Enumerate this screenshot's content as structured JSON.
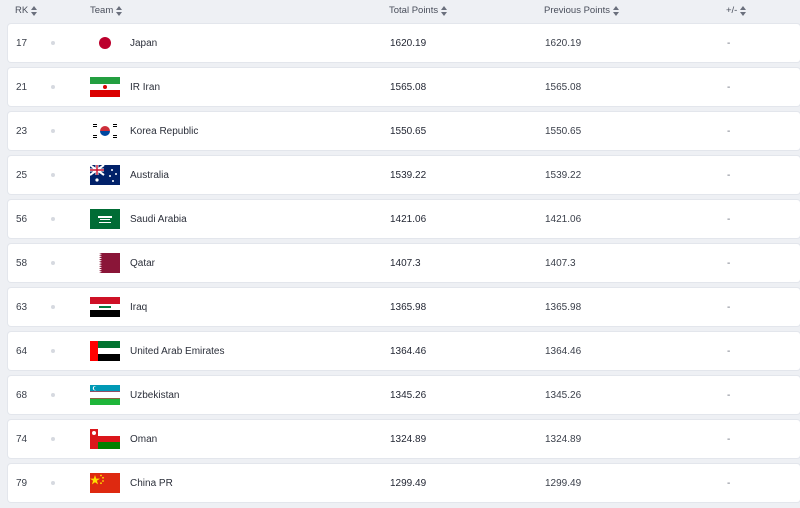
{
  "columns": {
    "rank": "RK",
    "team": "Team",
    "total_points": "Total Points",
    "previous_points": "Previous Points",
    "change": "+/-"
  },
  "rows": [
    {
      "rank": "17",
      "team": "Japan",
      "total": "1620.19",
      "previous": "1620.19",
      "change": "-",
      "flag": "japan-flag-icon"
    },
    {
      "rank": "21",
      "team": "IR Iran",
      "total": "1565.08",
      "previous": "1565.08",
      "change": "-",
      "flag": "iran-flag-icon"
    },
    {
      "rank": "23",
      "team": "Korea Republic",
      "total": "1550.65",
      "previous": "1550.65",
      "change": "-",
      "flag": "korea-flag-icon"
    },
    {
      "rank": "25",
      "team": "Australia",
      "total": "1539.22",
      "previous": "1539.22",
      "change": "-",
      "flag": "australia-flag-icon"
    },
    {
      "rank": "56",
      "team": "Saudi Arabia",
      "total": "1421.06",
      "previous": "1421.06",
      "change": "-",
      "flag": "saudi-arabia-flag-icon"
    },
    {
      "rank": "58",
      "team": "Qatar",
      "total": "1407.3",
      "previous": "1407.3",
      "change": "-",
      "flag": "qatar-flag-icon"
    },
    {
      "rank": "63",
      "team": "Iraq",
      "total": "1365.98",
      "previous": "1365.98",
      "change": "-",
      "flag": "iraq-flag-icon"
    },
    {
      "rank": "64",
      "team": "United Arab Emirates",
      "total": "1364.46",
      "previous": "1364.46",
      "change": "-",
      "flag": "uae-flag-icon"
    },
    {
      "rank": "68",
      "team": "Uzbekistan",
      "total": "1345.26",
      "previous": "1345.26",
      "change": "-",
      "flag": "uzbekistan-flag-icon"
    },
    {
      "rank": "74",
      "team": "Oman",
      "total": "1324.89",
      "previous": "1324.89",
      "change": "-",
      "flag": "oman-flag-icon"
    },
    {
      "rank": "79",
      "team": "China PR",
      "total": "1299.49",
      "previous": "1299.49",
      "change": "-",
      "flag": "china-flag-icon"
    }
  ]
}
